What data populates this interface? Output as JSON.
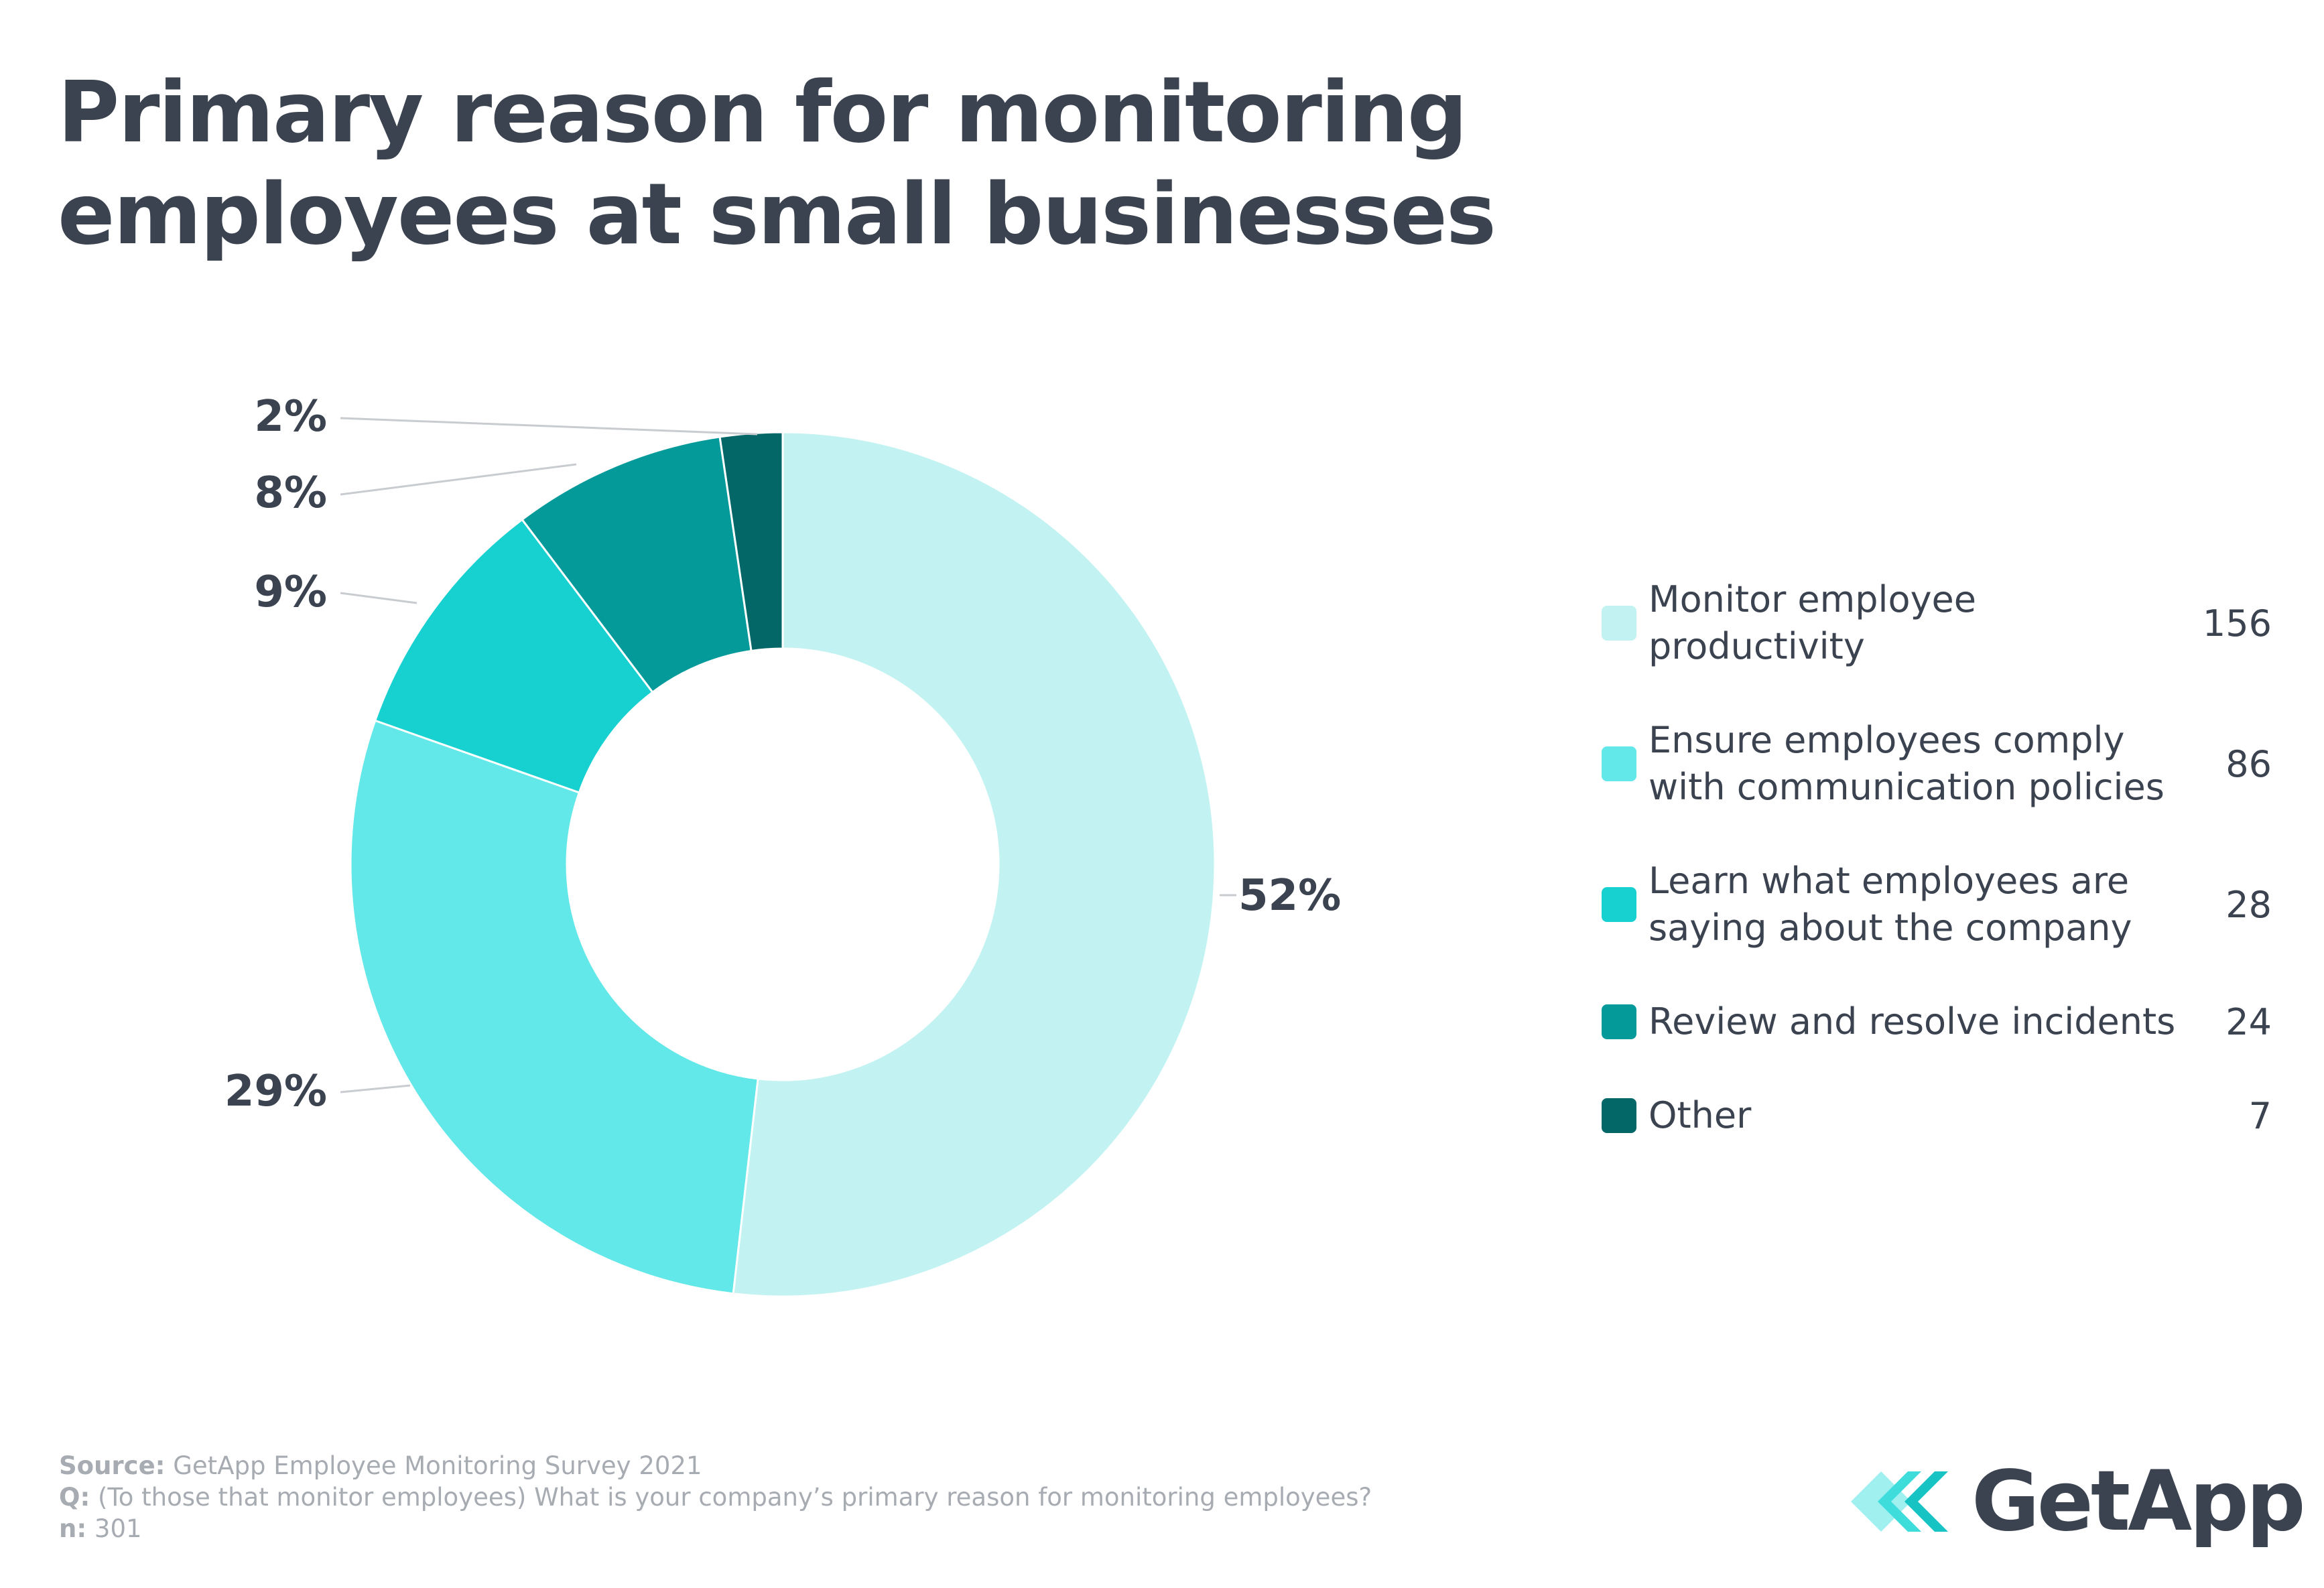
{
  "title_lines": [
    "Primary reason for monitoring",
    "employees at small businesses"
  ],
  "chart_data": {
    "type": "pie",
    "donut": true,
    "categories": [
      "Monitor employee productivity",
      "Ensure employees comply with communication policies",
      "Learn what employees are saying about the company",
      "Review and resolve incidents",
      "Other"
    ],
    "values": [
      156,
      86,
      28,
      24,
      7
    ],
    "percent_labels": [
      "52%",
      "29%",
      "9%",
      "8%",
      "2%"
    ],
    "colors": [
      "#c2f3f2",
      "#62e8e8",
      "#17d0d0",
      "#049a9a",
      "#036767"
    ],
    "legend_placement": "right"
  },
  "legend": [
    {
      "lines": [
        "Monitor employee",
        "productivity"
      ],
      "value": "156",
      "color": "#c2f3f2"
    },
    {
      "lines": [
        "Ensure employees comply",
        "with communication policies"
      ],
      "value": "86",
      "color": "#62e8e8"
    },
    {
      "lines": [
        "Learn what employees are",
        "saying about the company"
      ],
      "value": "28",
      "color": "#17d0d0"
    },
    {
      "lines": [
        "Review and resolve incidents"
      ],
      "value": "24",
      "color": "#049a9a"
    },
    {
      "lines": [
        "Other"
      ],
      "value": "7",
      "color": "#036767"
    }
  ],
  "footer": {
    "source_label": "Source:",
    "source_text": "GetApp Employee Monitoring Survey 2021",
    "q_label": "Q:",
    "q_text": "(To those that monitor employees) What is your company’s primary reason for monitoring employees?",
    "n_label": "n:",
    "n_text": "301"
  },
  "logo": {
    "text": "GetApp",
    "colors": [
      "#9ff0ef",
      "#3fdcdc",
      "#17c3c3"
    ]
  }
}
